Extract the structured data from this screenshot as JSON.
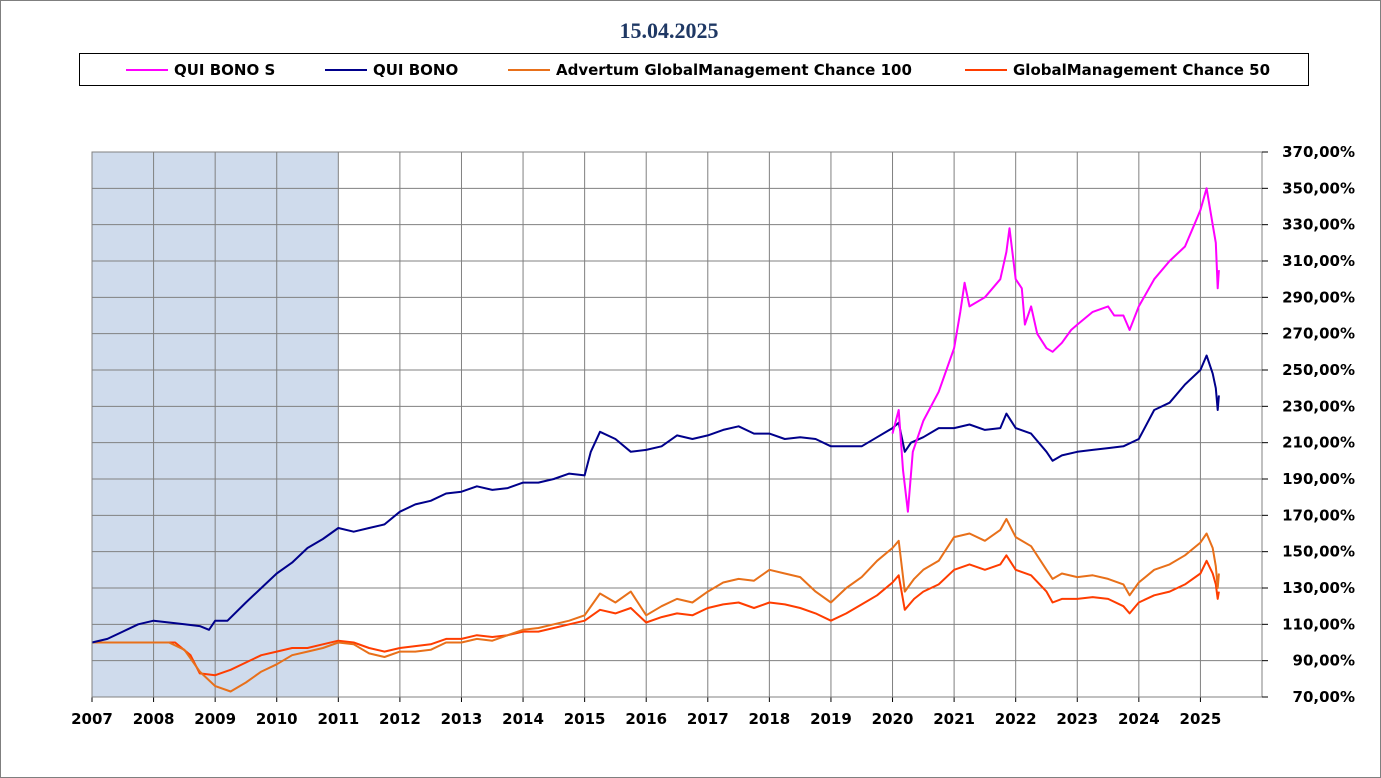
{
  "chart_data": {
    "type": "line",
    "title": "15.04.2025",
    "xlabel": "",
    "ylabel": "",
    "x_ticks": [
      "2007",
      "2008",
      "2009",
      "2010",
      "2011",
      "2012",
      "2013",
      "2014",
      "2015",
      "2016",
      "2017",
      "2018",
      "2019",
      "2020",
      "2021",
      "2022",
      "2023",
      "2024",
      "2025"
    ],
    "y_ticks": [
      "70,00%",
      "90,00%",
      "110,00%",
      "130,00%",
      "150,00%",
      "170,00%",
      "190,00%",
      "210,00%",
      "230,00%",
      "250,00%",
      "270,00%",
      "290,00%",
      "310,00%",
      "330,00%",
      "350,00%",
      "370,00%"
    ],
    "xlim": [
      2007.0,
      2026.0
    ],
    "ylim": [
      70,
      370
    ],
    "y_axis_side": "right",
    "grid": true,
    "legend_position": "top",
    "highlight_band": {
      "x_start": 2007.0,
      "x_end": 2011.0,
      "color": "#cfdbec"
    },
    "series": [
      {
        "name": "QUI BONO S",
        "color": "#ff00ff",
        "points": [
          [
            2020.0,
            215
          ],
          [
            2020.1,
            228
          ],
          [
            2020.17,
            195
          ],
          [
            2020.25,
            172
          ],
          [
            2020.33,
            205
          ],
          [
            2020.5,
            222
          ],
          [
            2020.75,
            238
          ],
          [
            2021.0,
            262
          ],
          [
            2021.1,
            282
          ],
          [
            2021.17,
            298
          ],
          [
            2021.25,
            285
          ],
          [
            2021.5,
            290
          ],
          [
            2021.75,
            300
          ],
          [
            2021.85,
            315
          ],
          [
            2021.9,
            328
          ],
          [
            2022.0,
            300
          ],
          [
            2022.1,
            295
          ],
          [
            2022.15,
            275
          ],
          [
            2022.25,
            285
          ],
          [
            2022.35,
            270
          ],
          [
            2022.5,
            262
          ],
          [
            2022.6,
            260
          ],
          [
            2022.75,
            265
          ],
          [
            2022.9,
            272
          ],
          [
            2023.0,
            275
          ],
          [
            2023.25,
            282
          ],
          [
            2023.5,
            285
          ],
          [
            2023.6,
            280
          ],
          [
            2023.75,
            280
          ],
          [
            2023.85,
            272
          ],
          [
            2024.0,
            285
          ],
          [
            2024.25,
            300
          ],
          [
            2024.5,
            310
          ],
          [
            2024.75,
            318
          ],
          [
            2024.9,
            330
          ],
          [
            2025.0,
            338
          ],
          [
            2025.1,
            350
          ],
          [
            2025.2,
            330
          ],
          [
            2025.25,
            320
          ],
          [
            2025.28,
            295
          ],
          [
            2025.3,
            305
          ]
        ]
      },
      {
        "name": "QUI BONO",
        "color": "#00008b",
        "points": [
          [
            2007.0,
            100
          ],
          [
            2007.25,
            102
          ],
          [
            2007.5,
            106
          ],
          [
            2007.75,
            110
          ],
          [
            2008.0,
            112
          ],
          [
            2008.25,
            111
          ],
          [
            2008.5,
            110
          ],
          [
            2008.75,
            109
          ],
          [
            2008.9,
            107
          ],
          [
            2009.0,
            112
          ],
          [
            2009.2,
            112
          ],
          [
            2009.5,
            122
          ],
          [
            2009.75,
            130
          ],
          [
            2010.0,
            138
          ],
          [
            2010.25,
            144
          ],
          [
            2010.5,
            152
          ],
          [
            2010.75,
            157
          ],
          [
            2011.0,
            163
          ],
          [
            2011.25,
            161
          ],
          [
            2011.5,
            163
          ],
          [
            2011.75,
            165
          ],
          [
            2012.0,
            172
          ],
          [
            2012.25,
            176
          ],
          [
            2012.5,
            178
          ],
          [
            2012.75,
            182
          ],
          [
            2013.0,
            183
          ],
          [
            2013.25,
            186
          ],
          [
            2013.5,
            184
          ],
          [
            2013.75,
            185
          ],
          [
            2014.0,
            188
          ],
          [
            2014.25,
            188
          ],
          [
            2014.5,
            190
          ],
          [
            2014.75,
            193
          ],
          [
            2015.0,
            192
          ],
          [
            2015.1,
            205
          ],
          [
            2015.25,
            216
          ],
          [
            2015.5,
            212
          ],
          [
            2015.75,
            205
          ],
          [
            2016.0,
            206
          ],
          [
            2016.25,
            208
          ],
          [
            2016.5,
            214
          ],
          [
            2016.75,
            212
          ],
          [
            2017.0,
            214
          ],
          [
            2017.25,
            217
          ],
          [
            2017.5,
            219
          ],
          [
            2017.75,
            215
          ],
          [
            2018.0,
            215
          ],
          [
            2018.25,
            212
          ],
          [
            2018.5,
            213
          ],
          [
            2018.75,
            212
          ],
          [
            2019.0,
            208
          ],
          [
            2019.25,
            208
          ],
          [
            2019.5,
            208
          ],
          [
            2019.75,
            213
          ],
          [
            2020.0,
            218
          ],
          [
            2020.1,
            221
          ],
          [
            2020.2,
            205
          ],
          [
            2020.3,
            210
          ],
          [
            2020.5,
            213
          ],
          [
            2020.75,
            218
          ],
          [
            2021.0,
            218
          ],
          [
            2021.25,
            220
          ],
          [
            2021.5,
            217
          ],
          [
            2021.75,
            218
          ],
          [
            2021.85,
            226
          ],
          [
            2022.0,
            218
          ],
          [
            2022.25,
            215
          ],
          [
            2022.5,
            205
          ],
          [
            2022.6,
            200
          ],
          [
            2022.75,
            203
          ],
          [
            2023.0,
            205
          ],
          [
            2023.25,
            206
          ],
          [
            2023.5,
            207
          ],
          [
            2023.75,
            208
          ],
          [
            2024.0,
            212
          ],
          [
            2024.25,
            228
          ],
          [
            2024.5,
            232
          ],
          [
            2024.75,
            242
          ],
          [
            2025.0,
            250
          ],
          [
            2025.1,
            258
          ],
          [
            2025.2,
            248
          ],
          [
            2025.25,
            240
          ],
          [
            2025.28,
            228
          ],
          [
            2025.3,
            236
          ]
        ]
      },
      {
        "name": "Advertum GlobalManagement Chance 100",
        "color": "#e8701a",
        "points": [
          [
            2007.0,
            100
          ],
          [
            2008.25,
            100
          ],
          [
            2008.5,
            96
          ],
          [
            2008.75,
            84
          ],
          [
            2009.0,
            76
          ],
          [
            2009.25,
            73
          ],
          [
            2009.5,
            78
          ],
          [
            2009.75,
            84
          ],
          [
            2010.0,
            88
          ],
          [
            2010.25,
            93
          ],
          [
            2010.5,
            95
          ],
          [
            2010.75,
            97
          ],
          [
            2011.0,
            100
          ],
          [
            2011.25,
            99
          ],
          [
            2011.5,
            94
          ],
          [
            2011.75,
            92
          ],
          [
            2012.0,
            95
          ],
          [
            2012.25,
            95
          ],
          [
            2012.5,
            96
          ],
          [
            2012.75,
            100
          ],
          [
            2013.0,
            100
          ],
          [
            2013.25,
            102
          ],
          [
            2013.5,
            101
          ],
          [
            2013.75,
            104
          ],
          [
            2014.0,
            107
          ],
          [
            2014.25,
            108
          ],
          [
            2014.5,
            110
          ],
          [
            2014.75,
            112
          ],
          [
            2015.0,
            115
          ],
          [
            2015.25,
            127
          ],
          [
            2015.5,
            122
          ],
          [
            2015.75,
            128
          ],
          [
            2016.0,
            115
          ],
          [
            2016.25,
            120
          ],
          [
            2016.5,
            124
          ],
          [
            2016.75,
            122
          ],
          [
            2017.0,
            128
          ],
          [
            2017.25,
            133
          ],
          [
            2017.5,
            135
          ],
          [
            2017.75,
            134
          ],
          [
            2018.0,
            140
          ],
          [
            2018.25,
            138
          ],
          [
            2018.5,
            136
          ],
          [
            2018.75,
            128
          ],
          [
            2019.0,
            122
          ],
          [
            2019.25,
            130
          ],
          [
            2019.5,
            136
          ],
          [
            2019.75,
            145
          ],
          [
            2020.0,
            152
          ],
          [
            2020.1,
            156
          ],
          [
            2020.2,
            128
          ],
          [
            2020.35,
            135
          ],
          [
            2020.5,
            140
          ],
          [
            2020.75,
            145
          ],
          [
            2021.0,
            158
          ],
          [
            2021.25,
            160
          ],
          [
            2021.5,
            156
          ],
          [
            2021.75,
            162
          ],
          [
            2021.85,
            168
          ],
          [
            2022.0,
            158
          ],
          [
            2022.25,
            153
          ],
          [
            2022.5,
            140
          ],
          [
            2022.6,
            135
          ],
          [
            2022.75,
            138
          ],
          [
            2023.0,
            136
          ],
          [
            2023.25,
            137
          ],
          [
            2023.5,
            135
          ],
          [
            2023.75,
            132
          ],
          [
            2023.85,
            126
          ],
          [
            2024.0,
            133
          ],
          [
            2024.25,
            140
          ],
          [
            2024.5,
            143
          ],
          [
            2024.75,
            148
          ],
          [
            2025.0,
            155
          ],
          [
            2025.1,
            160
          ],
          [
            2025.2,
            152
          ],
          [
            2025.25,
            142
          ],
          [
            2025.28,
            130
          ],
          [
            2025.3,
            138
          ]
        ]
      },
      {
        "name": "GlobalManagement Chance 50",
        "color": "#ff3d00",
        "points": [
          [
            2007.0,
            100
          ],
          [
            2008.35,
            100
          ],
          [
            2008.6,
            93
          ],
          [
            2008.75,
            83
          ],
          [
            2009.0,
            82
          ],
          [
            2009.25,
            85
          ],
          [
            2009.5,
            89
          ],
          [
            2009.75,
            93
          ],
          [
            2010.0,
            95
          ],
          [
            2010.25,
            97
          ],
          [
            2010.5,
            97
          ],
          [
            2010.75,
            99
          ],
          [
            2011.0,
            101
          ],
          [
            2011.25,
            100
          ],
          [
            2011.5,
            97
          ],
          [
            2011.75,
            95
          ],
          [
            2012.0,
            97
          ],
          [
            2012.25,
            98
          ],
          [
            2012.5,
            99
          ],
          [
            2012.75,
            102
          ],
          [
            2013.0,
            102
          ],
          [
            2013.25,
            104
          ],
          [
            2013.5,
            103
          ],
          [
            2013.75,
            104
          ],
          [
            2014.0,
            106
          ],
          [
            2014.25,
            106
          ],
          [
            2014.5,
            108
          ],
          [
            2014.75,
            110
          ],
          [
            2015.0,
            112
          ],
          [
            2015.25,
            118
          ],
          [
            2015.5,
            116
          ],
          [
            2015.75,
            119
          ],
          [
            2016.0,
            111
          ],
          [
            2016.25,
            114
          ],
          [
            2016.5,
            116
          ],
          [
            2016.75,
            115
          ],
          [
            2017.0,
            119
          ],
          [
            2017.25,
            121
          ],
          [
            2017.5,
            122
          ],
          [
            2017.75,
            119
          ],
          [
            2018.0,
            122
          ],
          [
            2018.25,
            121
          ],
          [
            2018.5,
            119
          ],
          [
            2018.75,
            116
          ],
          [
            2019.0,
            112
          ],
          [
            2019.25,
            116
          ],
          [
            2019.5,
            121
          ],
          [
            2019.75,
            126
          ],
          [
            2020.0,
            133
          ],
          [
            2020.1,
            137
          ],
          [
            2020.2,
            118
          ],
          [
            2020.35,
            124
          ],
          [
            2020.5,
            128
          ],
          [
            2020.75,
            132
          ],
          [
            2021.0,
            140
          ],
          [
            2021.25,
            143
          ],
          [
            2021.5,
            140
          ],
          [
            2021.75,
            143
          ],
          [
            2021.85,
            148
          ],
          [
            2022.0,
            140
          ],
          [
            2022.25,
            137
          ],
          [
            2022.5,
            128
          ],
          [
            2022.6,
            122
          ],
          [
            2022.75,
            124
          ],
          [
            2023.0,
            124
          ],
          [
            2023.25,
            125
          ],
          [
            2023.5,
            124
          ],
          [
            2023.75,
            120
          ],
          [
            2023.85,
            116
          ],
          [
            2024.0,
            122
          ],
          [
            2024.25,
            126
          ],
          [
            2024.5,
            128
          ],
          [
            2024.75,
            132
          ],
          [
            2025.0,
            138
          ],
          [
            2025.1,
            145
          ],
          [
            2025.2,
            138
          ],
          [
            2025.25,
            132
          ],
          [
            2025.28,
            124
          ],
          [
            2025.3,
            128
          ]
        ]
      }
    ]
  }
}
